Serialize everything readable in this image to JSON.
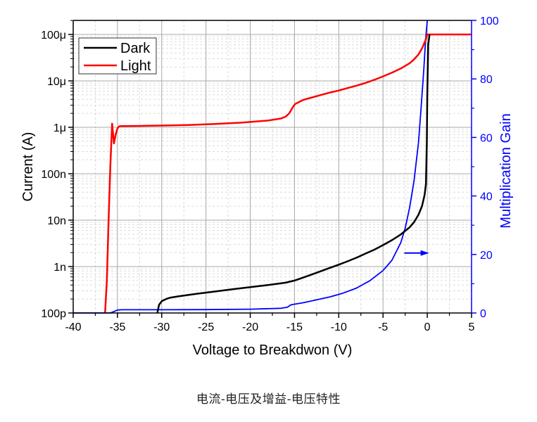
{
  "caption": "电流-电压及增益-电压特性",
  "chart_data": {
    "type": "line",
    "title": "",
    "xlabel": "Voltage to Breakdwon (V)",
    "ylabel": "Current (A)",
    "y2label": "Multiplication Gain",
    "xlim": [
      -40,
      5
    ],
    "ylim": [
      1e-10,
      0.00019
    ],
    "y2lim": [
      0,
      100
    ],
    "yscale": "log",
    "x_ticks": [
      -40,
      -35,
      -30,
      -25,
      -20,
      -15,
      -10,
      -5,
      0,
      5
    ],
    "x_tick_labels": [
      "-40",
      "-35",
      "-30",
      "-25",
      "-20",
      "-15",
      "-10",
      "-5",
      "0",
      "5"
    ],
    "y_ticks": [
      1e-10,
      1e-09,
      1e-08,
      1e-07,
      1e-06,
      1e-05,
      0.0001
    ],
    "y_tick_labels": [
      "100p",
      "1n",
      "10n",
      "100n",
      "1μ",
      "10μ",
      "100μ"
    ],
    "y2_ticks": [
      0,
      20,
      40,
      60,
      80,
      100
    ],
    "y2_tick_labels": [
      "0",
      "20",
      "40",
      "60",
      "80",
      "100"
    ],
    "grid": true,
    "legend_position": "upper left",
    "legend": [
      "Dark",
      "Light"
    ],
    "annotations": [
      {
        "type": "arrow",
        "text": "",
        "from_x": -2.6,
        "to_x": 0.2,
        "y2": 20.5,
        "color": "#0000ff",
        "meaning": "blue curve reads on right axis"
      }
    ],
    "series": [
      {
        "name": "Dark",
        "axis": "left",
        "color": "#000000",
        "x": [
          -30.5,
          -30.3,
          -30.0,
          -29.5,
          -29.0,
          -28.0,
          -26.0,
          -24.0,
          -22.0,
          -20.0,
          -18.0,
          -16.0,
          -15.0,
          -14.0,
          -13.0,
          -12.0,
          -11.0,
          -10.0,
          -9.0,
          -8.0,
          -7.0,
          -6.0,
          -5.0,
          -4.0,
          -3.0,
          -2.0,
          -1.5,
          -1.0,
          -0.6,
          -0.3,
          -0.15,
          -0.05,
          0.0,
          0.1,
          0.25
        ],
        "y": [
          1e-10,
          1.5e-10,
          1.8e-10,
          2e-10,
          2.15e-10,
          2.3e-10,
          2.6e-10,
          2.9e-10,
          3.25e-10,
          3.6e-10,
          4e-10,
          4.5e-10,
          5e-10,
          5.8e-10,
          6.8e-10,
          8e-10,
          9.4e-10,
          1.1e-09,
          1.3e-09,
          1.55e-09,
          1.9e-09,
          2.3e-09,
          2.9e-09,
          3.7e-09,
          4.9e-09,
          7e-09,
          9e-09,
          1.3e-08,
          2e-08,
          3.5e-08,
          6e-08,
          5e-07,
          5e-06,
          6e-05,
          0.0001
        ]
      },
      {
        "name": "Light",
        "axis": "left",
        "color": "#ff0000",
        "x": [
          -36.4,
          -36.2,
          -36.0,
          -35.8,
          -35.6,
          -35.4,
          -35.2,
          -35.0,
          -34.8,
          -34.5,
          -33.0,
          -30.0,
          -27.0,
          -24.0,
          -21.0,
          -18.0,
          -16.5,
          -16.0,
          -15.6,
          -15.3,
          -15.1,
          -14.9,
          -14.5,
          -14.0,
          -13.0,
          -12.0,
          -11.0,
          -10.0,
          -9.0,
          -8.0,
          -7.0,
          -6.0,
          -5.0,
          -4.0,
          -3.0,
          -2.0,
          -1.5,
          -1.0,
          -0.6,
          -0.2,
          0.0,
          5.0
        ],
        "y": [
          1e-10,
          5e-10,
          1e-08,
          1.5e-07,
          1.2e-06,
          4.5e-07,
          7e-07,
          9.5e-07,
          1.05e-06,
          1.06e-06,
          1.07e-06,
          1.09e-06,
          1.12e-06,
          1.18e-06,
          1.26e-06,
          1.4e-06,
          1.55e-06,
          1.7e-06,
          2e-06,
          2.5e-06,
          2.9e-06,
          3.2e-06,
          3.5e-06,
          3.9e-06,
          4.4e-06,
          5e-06,
          5.6e-06,
          6.2e-06,
          7e-06,
          7.9e-06,
          9e-06,
          1.05e-05,
          1.25e-05,
          1.5e-05,
          1.85e-05,
          2.4e-05,
          2.9e-05,
          3.7e-05,
          5e-05,
          7.5e-05,
          0.0001,
          0.0001
        ]
      },
      {
        "name": "Gain",
        "axis": "right",
        "color": "#0000ff",
        "x": [
          -40.0,
          -35.8,
          -35.4,
          -35.0,
          -34.5,
          -30.0,
          -25.0,
          -20.0,
          -16.5,
          -15.8,
          -15.4,
          -15.0,
          -14.0,
          -12.5,
          -11.0,
          -9.5,
          -8.0,
          -6.5,
          -5.0,
          -4.0,
          -3.0,
          -2.5,
          -2.0,
          -1.5,
          -1.0,
          -0.7,
          -0.4,
          -0.2,
          0.0
        ],
        "y": [
          0.0,
          0.0,
          0.5,
          1.0,
          1.1,
          1.1,
          1.15,
          1.3,
          1.6,
          2.0,
          2.8,
          3.0,
          3.5,
          4.5,
          5.5,
          6.8,
          8.5,
          11.0,
          14.5,
          18.0,
          24.0,
          29.0,
          36.0,
          45.0,
          58.0,
          70.0,
          83.0,
          93.0,
          100.0
        ]
      }
    ]
  }
}
